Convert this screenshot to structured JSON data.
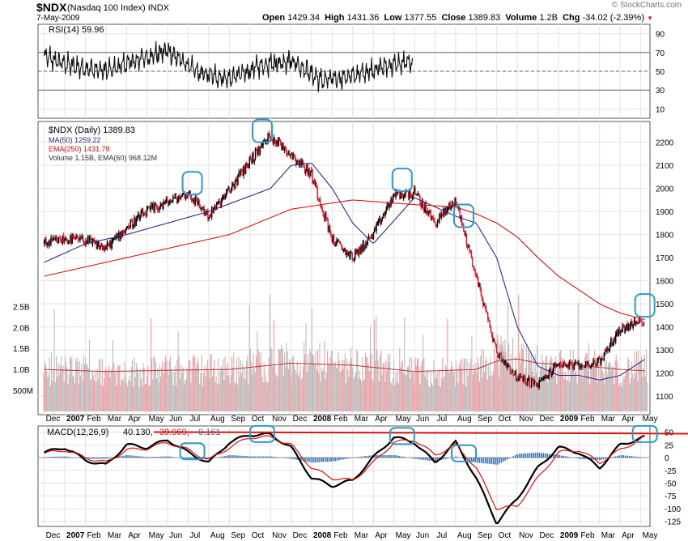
{
  "header": {
    "symbol": "$NDX",
    "name": "(Nasdaq 100 Index)",
    "exchange": "INDX",
    "date": "7-May-2009",
    "open_label": "Open",
    "open": "1429.34",
    "high_label": "High",
    "high": "1431.36",
    "low_label": "Low",
    "low": "1377.55",
    "close_label": "Close",
    "close": "1389.83",
    "volume_label": "Volume",
    "volume": "1.2B",
    "chg_label": "Chg",
    "chg": "-34.02 (-2.39%)",
    "copyright": "© StockCharts.com"
  },
  "colors": {
    "up": "#000000",
    "down": "#cc2233",
    "ma50": "#2b2b8f",
    "ema250": "#dd1111",
    "vol_up": "#bdbdbd",
    "vol_down": "#e9a3a8",
    "macd_line": "#000000",
    "macd_signal": "#dd1111",
    "histogram": "#3a6fb0",
    "highlight": "#2e9bc6"
  },
  "chart_data": [
    {
      "type": "line",
      "panel": "RSI",
      "legend": "RSI(14) 59.96",
      "y_ticks": [
        90,
        70,
        50,
        30,
        10
      ],
      "ylim": [
        0,
        100
      ],
      "reference_lines": [
        70,
        50,
        30
      ],
      "x": [
        0,
        1.5,
        3,
        4.5,
        6,
        7.5,
        9,
        10.5,
        12,
        13.5,
        15,
        16.5,
        17.9
      ],
      "values": [
        65,
        55,
        50,
        62,
        72,
        48,
        42,
        55,
        62,
        40,
        45,
        55,
        60
      ]
    },
    {
      "type": "candlestick",
      "panel": "Price",
      "title": "$NDX (Daily) 1389.83",
      "x_unit": "months since 2006-12-01",
      "y_ticks": [
        2200,
        2100,
        2000,
        1900,
        1800,
        1700,
        1600,
        1500,
        1400,
        1300,
        1200,
        1100
      ],
      "ylim": [
        1020,
        2290
      ],
      "series": [
        {
          "name": "$NDX",
          "x": [
            0,
            1,
            2,
            3,
            4,
            5,
            6,
            7,
            8,
            9,
            10,
            11,
            12,
            13,
            14,
            15,
            16,
            17,
            18,
            19,
            20,
            21,
            22,
            23,
            24,
            25,
            26,
            27,
            28,
            29.2
          ],
          "values": [
            1760,
            1780,
            1775,
            1740,
            1830,
            1900,
            1940,
            1980,
            1880,
            1990,
            2120,
            2230,
            2150,
            2060,
            1780,
            1700,
            1800,
            1970,
            1980,
            1850,
            1950,
            1620,
            1290,
            1180,
            1150,
            1240,
            1230,
            1250,
            1390,
            1430
          ]
        },
        {
          "name": "MA(50) 1259.22",
          "x": [
            0,
            2,
            4,
            6,
            8,
            9.5,
            11,
            12,
            13,
            14,
            15,
            16,
            17,
            18,
            19,
            20,
            21,
            22,
            23,
            24,
            25,
            26,
            27,
            28,
            29.2
          ],
          "values": [
            1680,
            1760,
            1800,
            1850,
            1900,
            1950,
            2000,
            2100,
            2110,
            2000,
            1850,
            1760,
            1860,
            1960,
            1920,
            1880,
            1850,
            1700,
            1400,
            1230,
            1190,
            1190,
            1170,
            1190,
            1260
          ]
        },
        {
          "name": "EMA(250) 1431.78",
          "x": [
            0,
            3,
            6,
            9,
            12,
            15,
            18,
            20,
            21,
            22,
            23,
            24,
            25,
            26,
            27,
            28,
            29.2
          ],
          "values": [
            1620,
            1680,
            1740,
            1800,
            1910,
            1950,
            1930,
            1920,
            1890,
            1850,
            1790,
            1700,
            1620,
            1560,
            1500,
            1460,
            1432
          ]
        }
      ]
    },
    {
      "type": "bar",
      "panel": "Volume",
      "legend": "Volume 1.15B, EMA(60) 968.12M",
      "y_ticks": [
        "2.5B",
        "2.0B",
        "1.5B",
        "1.0B",
        "500M"
      ],
      "ylim": [
        0,
        2700000000
      ],
      "x": [
        0,
        3,
        6,
        9,
        12,
        15,
        18,
        21,
        22,
        23,
        24,
        26,
        28,
        29.2
      ],
      "values": [
        1100000000,
        1000000000,
        1050000000,
        1100000000,
        1300000000,
        1200000000,
        1000000000,
        1050000000,
        1500000000,
        1400000000,
        1200000000,
        1150000000,
        1050000000,
        1150000000
      ],
      "ema60": [
        1000000000,
        950000000,
        980000000,
        1000000000,
        1150000000,
        1100000000,
        950000000,
        1000000000,
        1200000000,
        1250000000,
        1150000000,
        1100000000,
        1000000000,
        968000000
      ]
    },
    {
      "type": "line",
      "panel": "MACD",
      "legend": "MACD(12,26,9) 40.130, 39.969, 0.161",
      "legend_parts": {
        "label": "MACD(12,26,9)",
        "macd": "40.130,",
        "signal": "39.969,",
        "histogram": "0.161"
      },
      "y_ticks": [
        50,
        25,
        0,
        -25,
        -50,
        -75,
        -100,
        -125
      ],
      "ylim": [
        -135,
        62
      ],
      "reference_line": 47,
      "x": [
        0,
        1,
        2,
        3,
        4,
        5,
        6,
        7,
        8,
        9,
        10,
        11,
        12,
        13,
        14,
        15,
        16,
        17,
        18,
        19,
        20,
        21,
        22,
        23,
        24,
        25,
        26,
        27,
        28,
        29.2
      ],
      "series": [
        {
          "name": "MACD",
          "values": [
            10,
            20,
            -5,
            -15,
            25,
            20,
            35,
            10,
            -10,
            30,
            45,
            45,
            20,
            -40,
            -55,
            -45,
            0,
            40,
            30,
            -10,
            30,
            -40,
            -128,
            -80,
            -20,
            20,
            10,
            -20,
            25,
            40
          ]
        },
        {
          "name": "Signal",
          "values": [
            8,
            15,
            0,
            -10,
            15,
            18,
            30,
            15,
            -5,
            20,
            40,
            40,
            25,
            -20,
            -40,
            -45,
            -10,
            30,
            35,
            5,
            25,
            -20,
            -100,
            -95,
            -40,
            10,
            15,
            -10,
            15,
            40
          ]
        }
      ]
    }
  ],
  "x_axis": {
    "labels": [
      "Dec",
      "2007",
      "Feb",
      "Mar",
      "Apr",
      "May",
      "Jun",
      "Jul",
      "Aug",
      "Sep",
      "Oct",
      "Nov",
      "Dec",
      "2008",
      "Feb",
      "Mar",
      "Apr",
      "May",
      "Jun",
      "Jul",
      "Aug",
      "Sep",
      "Oct",
      "Nov",
      "Dec",
      "2009",
      "Feb",
      "Mar",
      "Apr",
      "May"
    ],
    "label_positions_months": [
      0,
      1,
      2,
      3,
      4,
      5,
      6,
      7,
      8,
      9,
      10,
      11,
      12,
      13,
      14,
      15,
      16,
      17,
      18,
      19,
      20,
      21,
      22,
      23,
      24,
      25,
      26,
      27,
      28,
      29
    ]
  },
  "annotations": {
    "price_highlight_months": [
      7.2,
      10.6,
      17.4,
      20.4,
      29.2
    ],
    "macd_highlight_months": [
      7.2,
      10.6,
      17.4,
      20.4,
      29.2
    ]
  }
}
